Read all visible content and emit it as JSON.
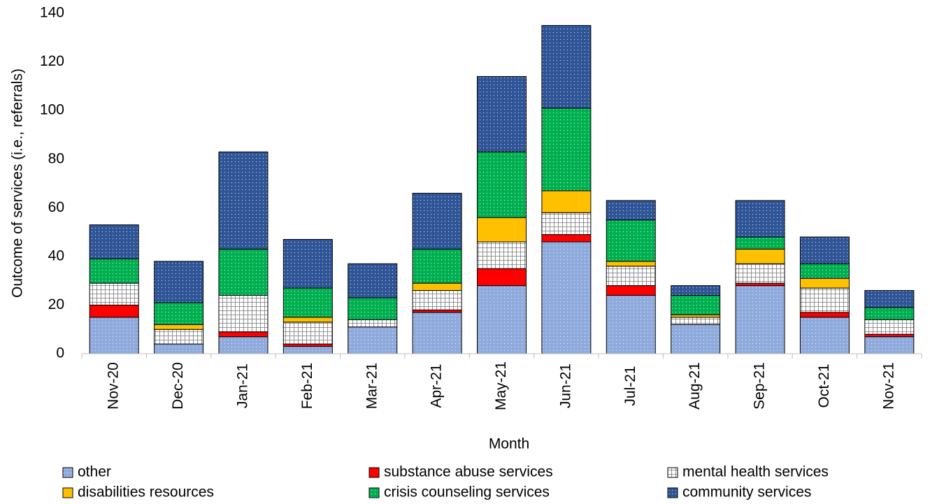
{
  "chart_data": {
    "type": "stacked-bar",
    "x_label": "Month",
    "y_label": "Outcome of services (i.e., referrals)",
    "categories": [
      "Nov-20",
      "Dec-20",
      "Jan-21",
      "Feb-21",
      "Mar-21",
      "Apr-21",
      "May-21",
      "Jun-21",
      "Jul-21",
      "Aug-21",
      "Sep-21",
      "Oct-21",
      "Nov-21"
    ],
    "series": [
      {
        "name": "other",
        "color": "#8faadc",
        "pattern": "dots",
        "values": [
          15,
          4,
          7,
          3,
          11,
          17,
          28,
          46,
          24,
          12,
          28,
          15,
          7
        ]
      },
      {
        "name": "substance abuse services",
        "color": "#ff0000",
        "pattern": "none",
        "values": [
          5,
          0,
          2,
          1,
          0,
          1,
          7,
          3,
          4,
          0,
          1,
          2,
          1
        ]
      },
      {
        "name": "mental health services",
        "color": "#ffffff",
        "pattern": "grid",
        "values": [
          9,
          6,
          15,
          9,
          3,
          8,
          11,
          9,
          8,
          3,
          8,
          10,
          6
        ]
      },
      {
        "name": "disabilities resources",
        "color": "#ffc000",
        "pattern": "none",
        "values": [
          0,
          2,
          0,
          2,
          0,
          3,
          10,
          9,
          2,
          1,
          6,
          4,
          0
        ]
      },
      {
        "name": "crisis counseling services",
        "color": "#00b050",
        "pattern": "dots",
        "values": [
          10,
          9,
          19,
          12,
          9,
          14,
          27,
          34,
          17,
          8,
          5,
          6,
          5
        ]
      },
      {
        "name": "community services",
        "color": "#2f5597",
        "pattern": "dots",
        "values": [
          14,
          17,
          40,
          20,
          14,
          23,
          31,
          34,
          8,
          4,
          15,
          11,
          7
        ]
      }
    ],
    "ylim": [
      0,
      140
    ],
    "yticks": [
      0,
      20,
      40,
      60,
      80,
      100,
      120,
      140
    ],
    "grid": false,
    "legend": "bottom"
  }
}
